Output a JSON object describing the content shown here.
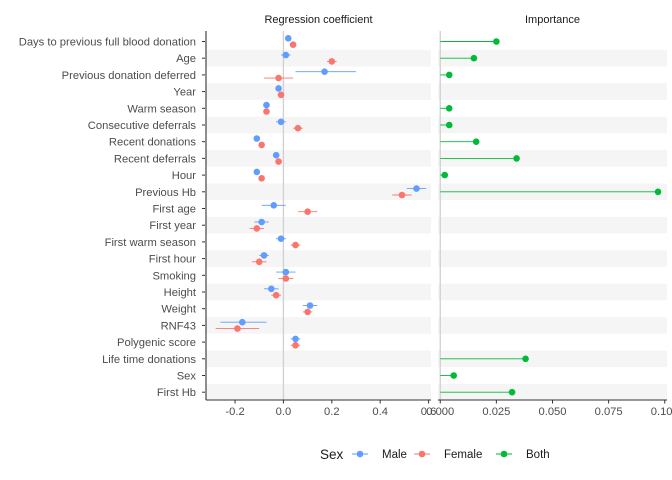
{
  "chart_data": {
    "type": "scatter",
    "categories": [
      "Days to previous full blood donation",
      "Age",
      "Previous donation deferred",
      "Year",
      "Warm season",
      "Consecutive deferrals",
      "Recent donations",
      "Recent deferrals",
      "Hour",
      "Previous Hb",
      "First age",
      "First year",
      "First warm season",
      "First hour",
      "Smoking",
      "Height",
      "Weight",
      "RNF43",
      "Polygenic score",
      "Life time donations",
      "Sex",
      "First Hb"
    ],
    "panels": [
      {
        "title": "Regression coefficient",
        "xlim": [
          -0.32,
          0.61
        ],
        "xticks": [
          -0.2,
          0.0,
          0.2,
          0.4,
          0.6
        ],
        "xtick_labels": [
          "-0.2",
          "0.0",
          "0.2",
          "0.4",
          "0.6"
        ],
        "ref_line": 0,
        "series": [
          {
            "name": "Male",
            "color": "#619CFF",
            "values": [
              0.02,
              0.01,
              0.17,
              -0.02,
              -0.07,
              -0.01,
              -0.11,
              -0.03,
              -0.11,
              0.55,
              -0.04,
              -0.09,
              -0.01,
              -0.08,
              0.01,
              -0.05,
              0.11,
              -0.17,
              0.05,
              null,
              null,
              null
            ],
            "lower": [
              0.02,
              -0.01,
              0.05,
              -0.02,
              -0.08,
              -0.03,
              -0.12,
              -0.04,
              -0.12,
              0.51,
              -0.09,
              -0.12,
              -0.03,
              -0.1,
              -0.03,
              -0.08,
              0.08,
              -0.26,
              0.03,
              null,
              null,
              null
            ],
            "upper": [
              0.02,
              0.03,
              0.3,
              -0.02,
              -0.06,
              0.01,
              -0.1,
              -0.02,
              -0.1,
              0.59,
              0.01,
              -0.06,
              0.01,
              -0.06,
              0.05,
              -0.02,
              0.14,
              -0.07,
              0.07,
              null,
              null,
              null
            ]
          },
          {
            "name": "Female",
            "color": "#F8766D",
            "values": [
              0.04,
              0.2,
              -0.02,
              -0.01,
              -0.07,
              0.06,
              -0.09,
              -0.02,
              -0.09,
              0.49,
              0.1,
              -0.11,
              0.05,
              -0.1,
              0.01,
              -0.03,
              0.1,
              -0.19,
              0.05,
              null,
              null,
              null
            ],
            "lower": [
              0.04,
              0.18,
              -0.08,
              -0.01,
              -0.08,
              0.04,
              -0.1,
              -0.03,
              -0.1,
              0.45,
              0.06,
              -0.14,
              0.03,
              -0.13,
              -0.02,
              -0.05,
              0.08,
              -0.28,
              0.03,
              null,
              null,
              null
            ],
            "upper": [
              0.04,
              0.22,
              0.04,
              -0.01,
              -0.06,
              0.08,
              -0.08,
              -0.01,
              -0.08,
              0.53,
              0.14,
              -0.08,
              0.07,
              -0.07,
              0.04,
              -0.01,
              0.12,
              -0.1,
              0.07,
              null,
              null,
              null
            ]
          }
        ]
      },
      {
        "title": "Importance",
        "xlim": [
          -0.001,
          0.101
        ],
        "xticks": [
          0.0,
          0.025,
          0.05,
          0.075,
          0.1
        ],
        "xtick_labels": [
          "0.000",
          "0.025",
          "0.050",
          "0.075",
          "0.100"
        ],
        "ref_line": 0,
        "series": [
          {
            "name": "Both",
            "color": "#00BA38",
            "values": [
              0.025,
              0.015,
              0.004,
              null,
              0.004,
              0.004,
              0.016,
              0.034,
              0.002,
              0.097,
              null,
              null,
              null,
              null,
              null,
              null,
              null,
              null,
              null,
              0.038,
              0.006,
              0.032
            ]
          }
        ]
      }
    ],
    "legend": {
      "title": "Sex",
      "position": "bottom",
      "entries": [
        {
          "name": "Male",
          "color": "#619CFF"
        },
        {
          "name": "Female",
          "color": "#F8766D"
        },
        {
          "name": "Both",
          "color": "#00BA38"
        }
      ]
    },
    "grid": false
  }
}
